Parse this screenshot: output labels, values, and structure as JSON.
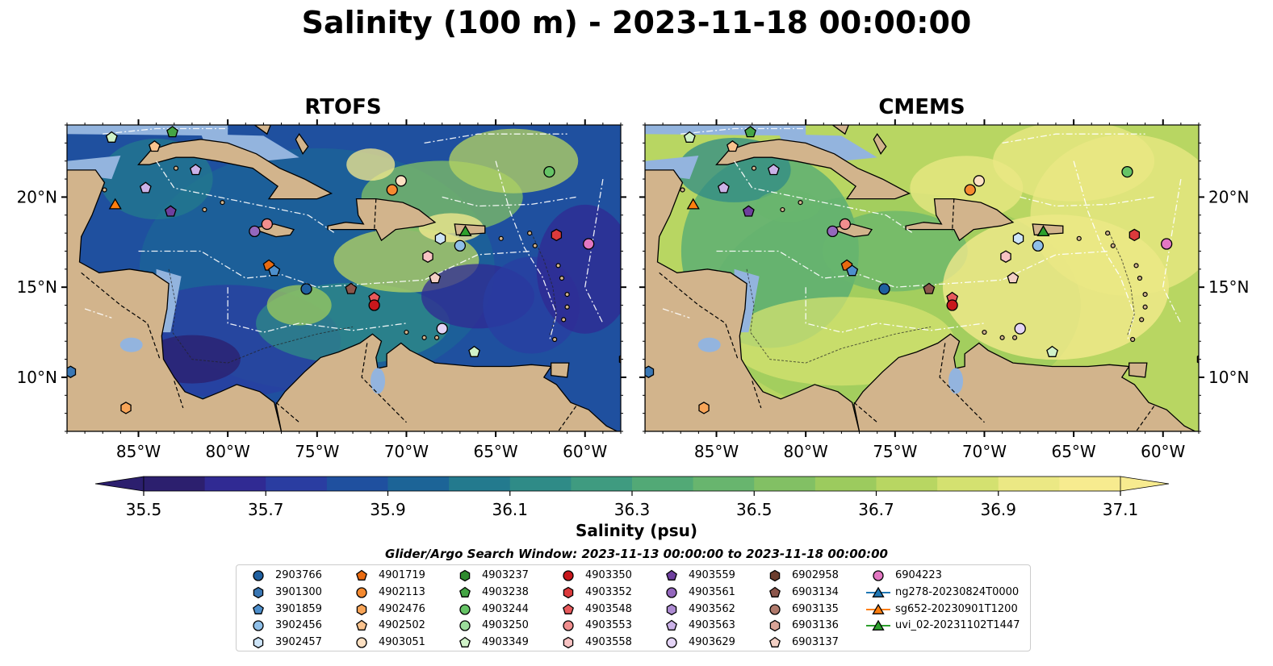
{
  "title": "Salinity (100 m) - 2023-11-18 00:00:00",
  "panels": [
    {
      "id": "rtofs",
      "title": "RTOFS",
      "palette": "rtofs"
    },
    {
      "id": "cmems",
      "title": "CMEMS",
      "palette": "cmems"
    }
  ],
  "x_ticks": [
    "85°W",
    "80°W",
    "75°W",
    "70°W",
    "65°W",
    "60°W"
  ],
  "y_ticks": [
    "20°N",
    "15°N",
    "10°N"
  ],
  "colorbar": {
    "label": "Salinity (psu)",
    "ticks": [
      "35.5",
      "35.7",
      "35.9",
      "36.1",
      "36.3",
      "36.5",
      "36.7",
      "36.9",
      "37.1"
    ],
    "colors": [
      "#2c1f6e",
      "#302a93",
      "#2a3da1",
      "#1f509f",
      "#1c6497",
      "#237a8e",
      "#2f8b87",
      "#3f9b80",
      "#52a976",
      "#68b56e",
      "#82c064",
      "#9ccb5e",
      "#b8d662",
      "#d4e170",
      "#ebe884",
      "#f7eb8f"
    ]
  },
  "search_window": "Glider/Argo Search Window: 2023-11-13 00:00:00 to 2023-11-18 00:00:00",
  "legend": [
    {
      "label": "2903766",
      "shape": "circle",
      "color": "#1f5f9f"
    },
    {
      "label": "3901300",
      "shape": "hexagon",
      "color": "#3a77b4"
    },
    {
      "label": "3901859",
      "shape": "pentagon",
      "color": "#4d8fcc"
    },
    {
      "label": "3902456",
      "shape": "circle",
      "color": "#8fbfe8"
    },
    {
      "label": "3902457",
      "shape": "hexagon",
      "color": "#cde4f7"
    },
    {
      "label": "4901719",
      "shape": "pentagon",
      "color": "#e86a10"
    },
    {
      "label": "4902113",
      "shape": "circle",
      "color": "#f58a30"
    },
    {
      "label": "4902476",
      "shape": "hexagon",
      "color": "#f8a558"
    },
    {
      "label": "4902502",
      "shape": "pentagon",
      "color": "#fac38e"
    },
    {
      "label": "4903051",
      "shape": "circle",
      "color": "#fde0c2"
    },
    {
      "label": "4903237",
      "shape": "hexagon",
      "color": "#2f8a2f"
    },
    {
      "label": "4903238",
      "shape": "pentagon",
      "color": "#45a545"
    },
    {
      "label": "4903244",
      "shape": "circle",
      "color": "#66c466"
    },
    {
      "label": "4903250",
      "shape": "circle",
      "color": "#9bdc9b"
    },
    {
      "label": "4903349",
      "shape": "pentagon",
      "color": "#d0f2c8"
    },
    {
      "label": "4903350",
      "shape": "circle",
      "color": "#c8171c"
    },
    {
      "label": "4903352",
      "shape": "hexagon",
      "color": "#dc3a3c"
    },
    {
      "label": "4903548",
      "shape": "pentagon",
      "color": "#e85a5c"
    },
    {
      "label": "4903553",
      "shape": "circle",
      "color": "#f08e8e"
    },
    {
      "label": "4903558",
      "shape": "hexagon",
      "color": "#f8c3c3"
    },
    {
      "label": "4903559",
      "shape": "pentagon",
      "color": "#6e3f9e"
    },
    {
      "label": "4903561",
      "shape": "circle",
      "color": "#9467bd"
    },
    {
      "label": "4903562",
      "shape": "hexagon",
      "color": "#ad8bd2"
    },
    {
      "label": "4903563",
      "shape": "pentagon",
      "color": "#cbb2e8"
    },
    {
      "label": "4903629",
      "shape": "circle",
      "color": "#e4d4f6"
    },
    {
      "label": "6902958",
      "shape": "hexagon",
      "color": "#6b3d2e"
    },
    {
      "label": "6903134",
      "shape": "pentagon",
      "color": "#8c564b"
    },
    {
      "label": "6903135",
      "shape": "circle",
      "color": "#b07a6c"
    },
    {
      "label": "6903136",
      "shape": "hexagon",
      "color": "#d9a497"
    },
    {
      "label": "6903137",
      "shape": "pentagon",
      "color": "#f3d0c5"
    },
    {
      "label": "6904223",
      "shape": "circle",
      "color": "#e377c2"
    },
    {
      "label": "ng278-20230824T0000",
      "shape": "triangle",
      "color": "#1f77b4"
    },
    {
      "label": "sg652-20230901T1200",
      "shape": "triangle",
      "color": "#ff7f0e"
    },
    {
      "label": "uvi_02-20231102T1447",
      "shape": "triangle",
      "color": "#2ca02c"
    }
  ],
  "markers": [
    {
      "lon": -86.5,
      "lat": 23.3,
      "legend": 14
    },
    {
      "lon": -84.1,
      "lat": 22.8,
      "legend": 8
    },
    {
      "lon": -84.6,
      "lat": 20.5,
      "legend": 23
    },
    {
      "lon": -86.3,
      "lat": 19.6,
      "legend": 32
    },
    {
      "lon": -83.2,
      "lat": 19.2,
      "legend": 20
    },
    {
      "lon": -81.8,
      "lat": 21.5,
      "legend": 23
    },
    {
      "lon": -78.5,
      "lat": 18.1,
      "legend": 21
    },
    {
      "lon": -77.8,
      "lat": 18.5,
      "legend": 18
    },
    {
      "lon": -77.7,
      "lat": 16.2,
      "legend": 5
    },
    {
      "lon": -77.4,
      "lat": 15.9,
      "legend": 2
    },
    {
      "lon": -75.6,
      "lat": 14.9,
      "legend": 0
    },
    {
      "lon": -73.1,
      "lat": 14.9,
      "legend": 26
    },
    {
      "lon": -71.8,
      "lat": 14.4,
      "legend": 17
    },
    {
      "lon": -71.8,
      "lat": 14.0,
      "legend": 15
    },
    {
      "lon": -70.8,
      "lat": 20.4,
      "legend": 6
    },
    {
      "lon": -70.3,
      "lat": 20.9,
      "legend": 9
    },
    {
      "lon": -66.7,
      "lat": 18.1,
      "legend": 33
    },
    {
      "lon": -68.1,
      "lat": 17.7,
      "legend": 4
    },
    {
      "lon": -67.0,
      "lat": 17.3,
      "legend": 3
    },
    {
      "lon": -68.8,
      "lat": 16.7,
      "legend": 19
    },
    {
      "lon": -68.4,
      "lat": 15.5,
      "legend": 29
    },
    {
      "lon": -68.0,
      "lat": 12.7,
      "legend": 24
    },
    {
      "lon": -66.2,
      "lat": 11.4,
      "legend": 14
    },
    {
      "lon": -62.0,
      "lat": 21.4,
      "legend": 12
    },
    {
      "lon": -61.6,
      "lat": 17.9,
      "legend": 16
    },
    {
      "lon": -59.8,
      "lat": 17.4,
      "legend": 30
    },
    {
      "lon": -57.8,
      "lat": 11.0,
      "legend": 25
    },
    {
      "lon": -88.8,
      "lat": 10.3,
      "legend": 1
    },
    {
      "lon": -85.7,
      "lat": 8.3,
      "legend": 7
    },
    {
      "lon": -83.1,
      "lat": 23.6,
      "legend": 11
    }
  ]
}
